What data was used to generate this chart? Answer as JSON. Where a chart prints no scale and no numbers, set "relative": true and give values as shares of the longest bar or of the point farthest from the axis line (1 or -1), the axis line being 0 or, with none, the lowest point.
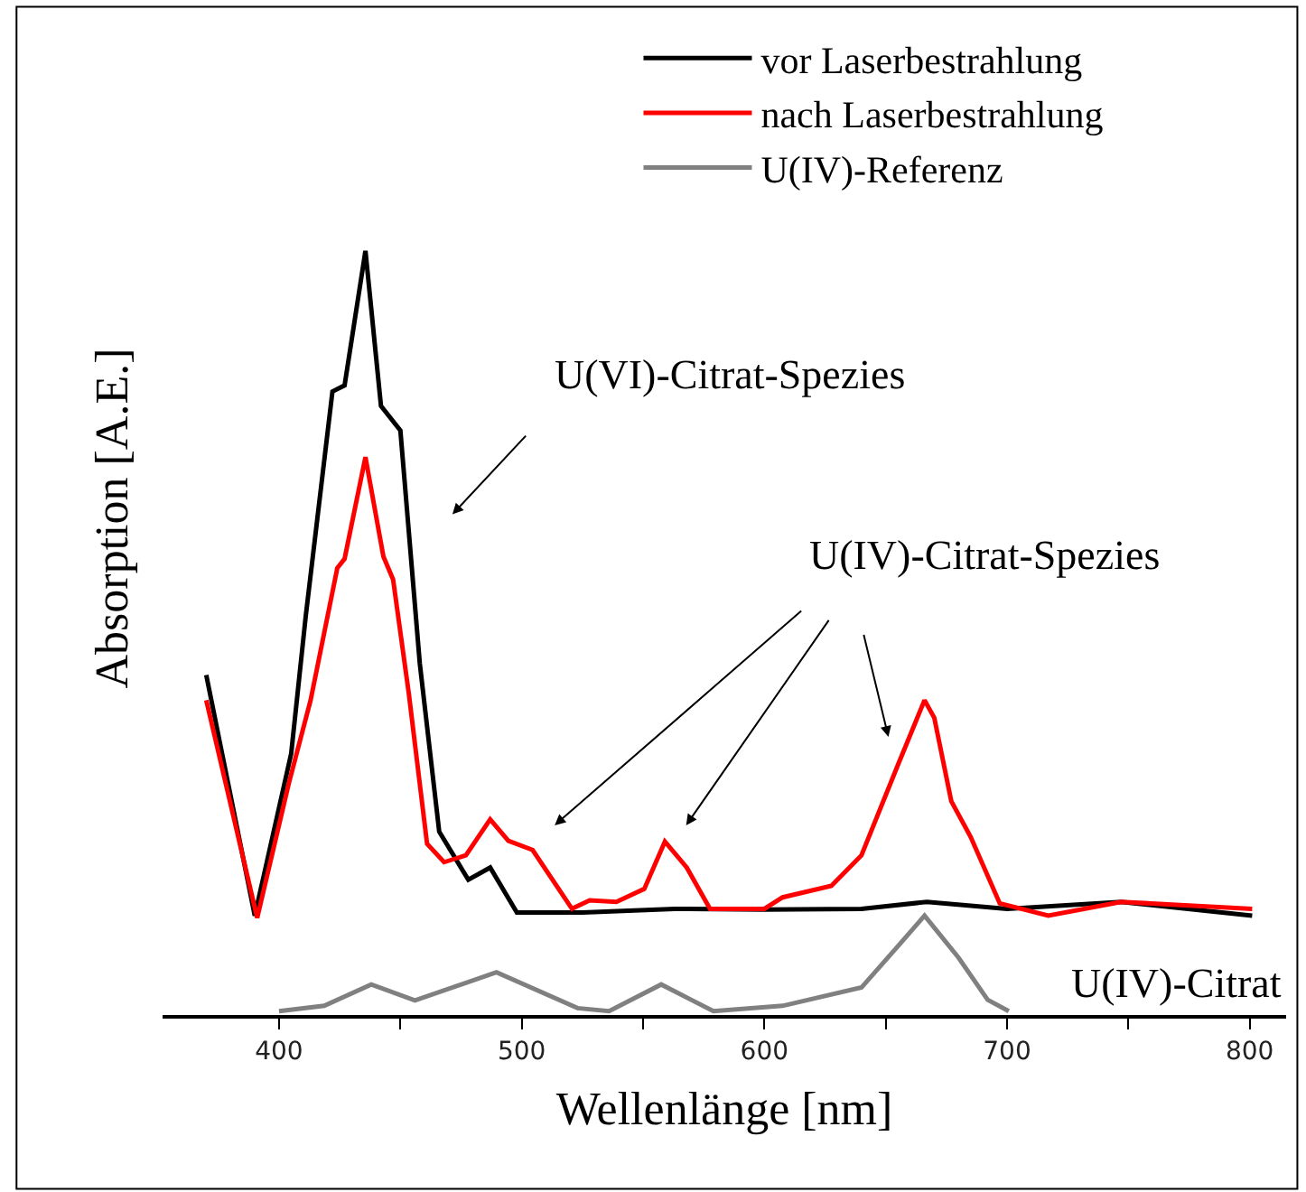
{
  "chart_data": {
    "type": "line",
    "relative": true,
    "xlabel": "Wellenlänge [nm]",
    "ylabel": "Absorption [A.E.]",
    "xlim": [
      352,
      815
    ],
    "xticks": [
      400,
      {
        "value": 450,
        "label": null
      },
      500,
      {
        "value": 550,
        "label": null
      },
      600,
      {
        "value": 650,
        "label": null
      },
      700,
      {
        "value": 750,
        "label": null
      },
      800
    ],
    "legend": "top right",
    "marker": "none",
    "line_style": "solid",
    "series": [
      {
        "name": "vor Laserbestrahlung",
        "color": "#000000",
        "x": [
          370,
          390,
          405,
          411,
          422,
          427,
          435.6,
          442,
          450,
          458,
          466,
          478,
          487,
          498,
          525,
          563,
          600,
          640,
          667,
          700,
          747,
          801
        ],
        "values": [
          0.445,
          0.13,
          0.342,
          0.522,
          0.816,
          0.824,
          1.0,
          0.797,
          0.765,
          0.46,
          0.24,
          0.177,
          0.193,
          0.134,
          0.134,
          0.139,
          0.138,
          0.139,
          0.148,
          0.139,
          0.148,
          0.13
        ]
      },
      {
        "name": "nach Laserbestrahlung",
        "color": "#ff0000",
        "x": [
          370,
          391,
          404,
          413,
          424,
          427,
          435.6,
          443,
          447,
          453.5,
          461,
          468,
          477,
          487,
          494.5,
          504.5,
          520.7,
          528,
          539,
          550.5,
          559,
          568,
          577.6,
          600,
          607.5,
          627.6,
          640,
          655,
          666,
          670,
          677,
          685,
          697,
          717,
          747,
          801
        ],
        "values": [
          0.412,
          0.127,
          0.303,
          0.412,
          0.585,
          0.597,
          0.73,
          0.6,
          0.57,
          0.42,
          0.224,
          0.2,
          0.209,
          0.256,
          0.228,
          0.216,
          0.139,
          0.15,
          0.148,
          0.165,
          0.227,
          0.193,
          0.139,
          0.139,
          0.154,
          0.169,
          0.209,
          0.327,
          0.412,
          0.389,
          0.28,
          0.233,
          0.146,
          0.13,
          0.148,
          0.139
        ]
      },
      {
        "name": "U(IV)-Referenz",
        "color": "#808080",
        "x": [
          400,
          418.6,
          438,
          456,
          489.6,
          523,
          536,
          557.5,
          579,
          607.5,
          640,
          655,
          666,
          680,
          692,
          700.7
        ],
        "values": [
          0.005,
          0.012,
          0.04,
          0.019,
          0.056,
          0.009,
          0.005,
          0.04,
          0.005,
          0.012,
          0.036,
          0.09,
          0.13,
          0.075,
          0.02,
          0.005
        ]
      }
    ],
    "annotations": [
      "U(VI)-Citrat-Spezies",
      "U(IV)-Citrat-Spezies",
      "U(IV)-Citrat"
    ]
  }
}
